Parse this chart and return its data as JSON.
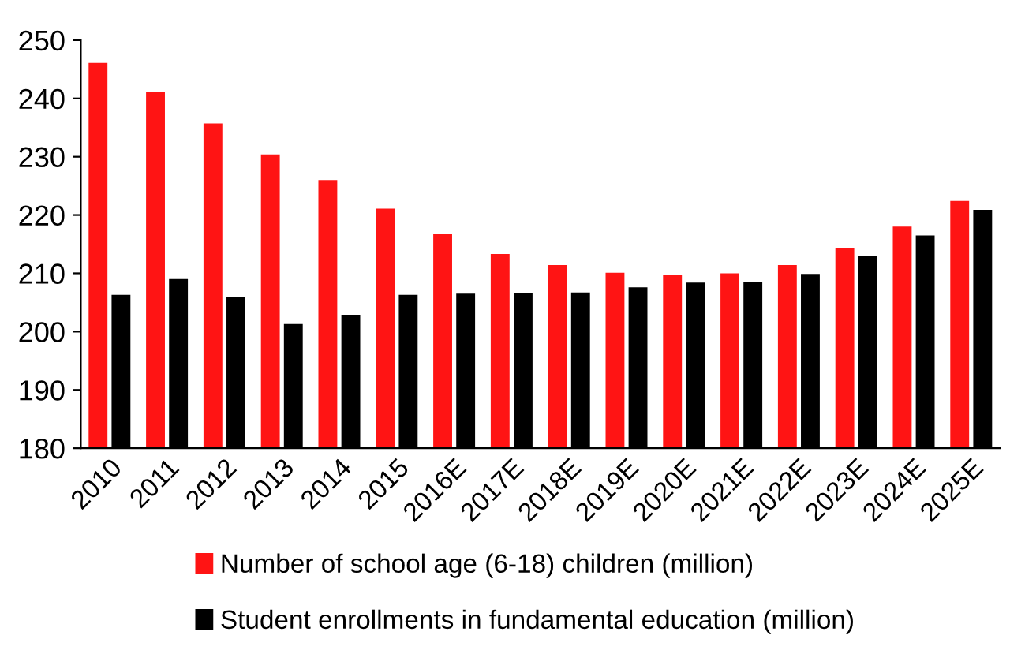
{
  "chart_data": {
    "type": "bar",
    "categories": [
      "2010",
      "2011",
      "2012",
      "2013",
      "2014",
      "2015",
      "2016E",
      "2017E",
      "2018E",
      "2019E",
      "2020E",
      "2021E",
      "2022E",
      "2023E",
      "2024E",
      "2025E"
    ],
    "series": [
      {
        "name": "Number of school age (6-18) children (million)",
        "color": "#ff1414",
        "values": [
          246.1,
          241.1,
          235.7,
          230.4,
          226.0,
          221.1,
          216.7,
          213.3,
          211.4,
          210.1,
          209.8,
          210.0,
          211.4,
          214.4,
          218.0,
          222.4
        ]
      },
      {
        "name": "Student enrollments in fundamental education (million)",
        "color": "#000000",
        "values": [
          206.3,
          209.0,
          206.0,
          201.3,
          202.9,
          206.3,
          206.5,
          206.6,
          206.7,
          207.6,
          208.4,
          208.5,
          209.9,
          212.9,
          216.5,
          220.9
        ]
      }
    ],
    "ylim": [
      180,
      250
    ],
    "yticks": [
      180,
      190,
      200,
      210,
      220,
      230,
      240,
      250
    ],
    "grid": false,
    "legend": "bottom"
  }
}
